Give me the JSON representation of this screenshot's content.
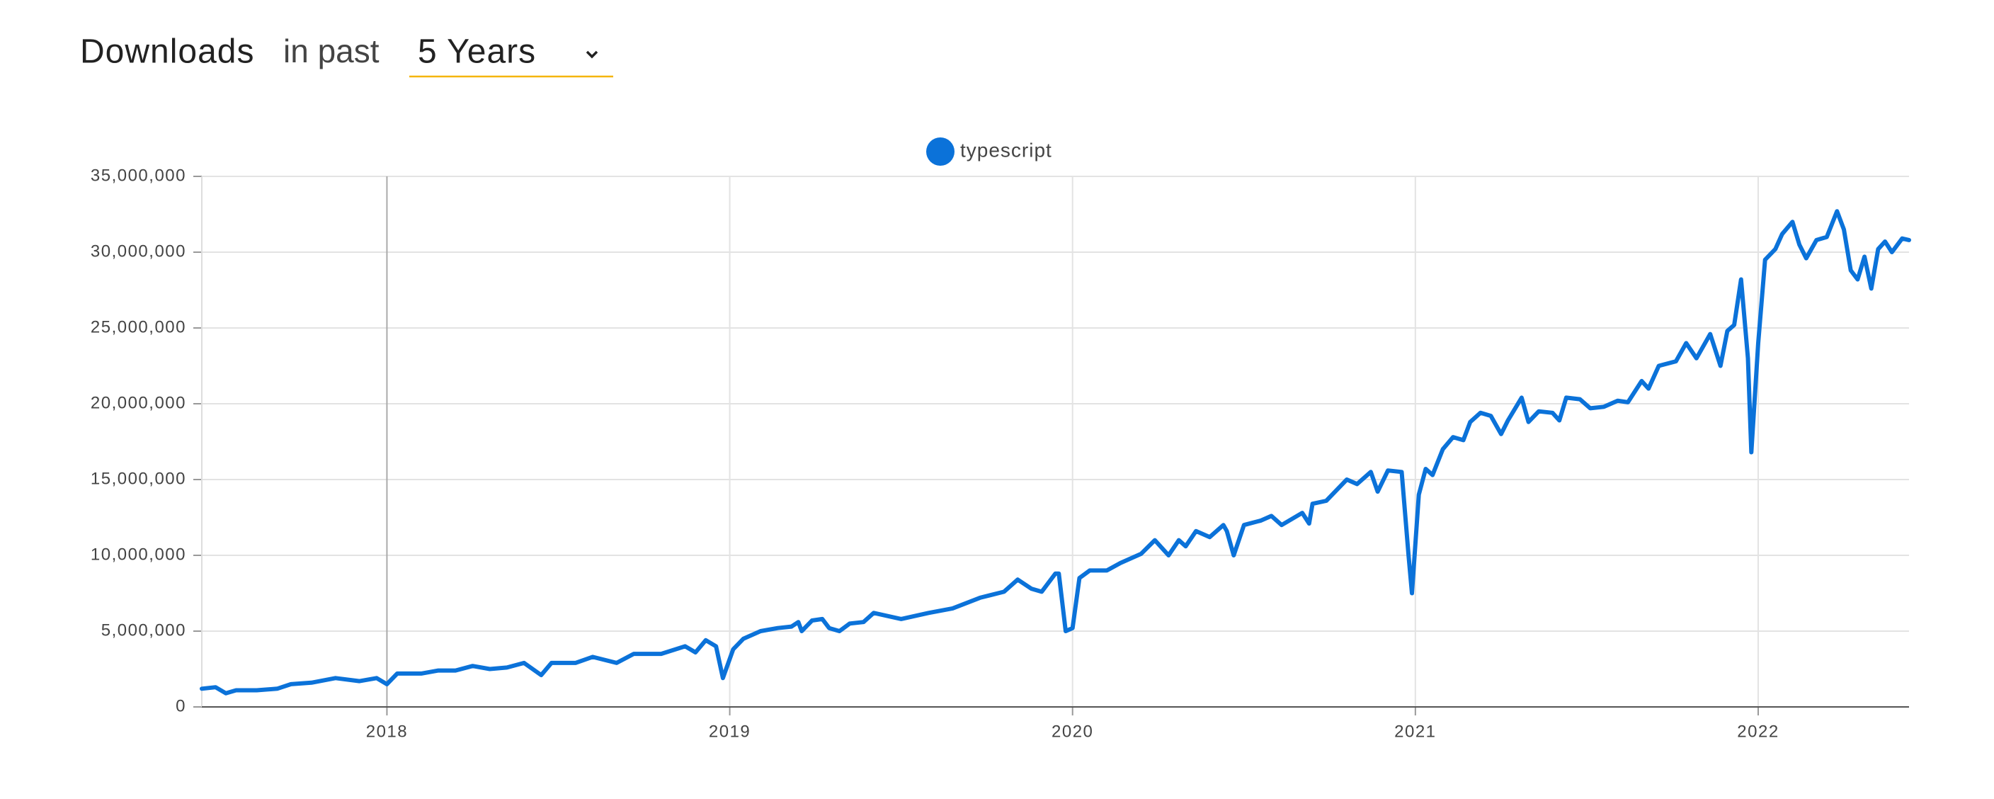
{
  "header": {
    "title": "Downloads",
    "subtitle": "in past",
    "period": "5 Years"
  },
  "chart_data": {
    "type": "line",
    "x": [
      2017.46,
      2017.5,
      2017.53,
      2017.56,
      2017.62,
      2017.68,
      2017.72,
      2017.78,
      2017.85,
      2017.92,
      2017.97,
      2018.0,
      2018.03,
      2018.1,
      2018.15,
      2018.2,
      2018.25,
      2018.3,
      2018.35,
      2018.4,
      2018.45,
      2018.48,
      2018.55,
      2018.6,
      2018.67,
      2018.72,
      2018.8,
      2018.87,
      2018.9,
      2018.93,
      2018.96,
      2018.98,
      2019.01,
      2019.04,
      2019.09,
      2019.14,
      2019.18,
      2019.2,
      2019.21,
      2019.24,
      2019.27,
      2019.29,
      2019.32,
      2019.35,
      2019.39,
      2019.42,
      2019.5,
      2019.58,
      2019.65,
      2019.73,
      2019.8,
      2019.84,
      2019.88,
      2019.91,
      2019.95,
      2019.96,
      2019.98,
      2020.0,
      2020.02,
      2020.05,
      2020.1,
      2020.14,
      2020.2,
      2020.24,
      2020.28,
      2020.31,
      2020.33,
      2020.36,
      2020.4,
      2020.44,
      2020.45,
      2020.47,
      2020.5,
      2020.55,
      2020.58,
      2020.61,
      2020.67,
      2020.69,
      2020.7,
      2020.74,
      2020.8,
      2020.83,
      2020.87,
      2020.89,
      2020.92,
      2020.96,
      2020.98,
      2020.99,
      2021.01,
      2021.03,
      2021.05,
      2021.08,
      2021.11,
      2021.14,
      2021.16,
      2021.19,
      2021.22,
      2021.25,
      2021.27,
      2021.31,
      2021.33,
      2021.36,
      2021.4,
      2021.42,
      2021.44,
      2021.48,
      2021.51,
      2021.55,
      2021.59,
      2021.62,
      2021.66,
      2021.68,
      2021.71,
      2021.76,
      2021.79,
      2021.82,
      2021.86,
      2021.89,
      2021.91,
      2021.93,
      2021.95,
      2021.97,
      2021.98,
      2022.0,
      2022.02,
      2022.05,
      2022.07,
      2022.1,
      2022.12,
      2022.14,
      2022.17,
      2022.2,
      2022.23,
      2022.25,
      2022.27,
      2022.29,
      2022.31,
      2022.33,
      2022.35,
      2022.37,
      2022.39,
      2022.42,
      2022.44
    ],
    "series": [
      {
        "name": "typescript",
        "color": "#0b72d9",
        "values": [
          1200000,
          1300000,
          900000,
          1100000,
          1100000,
          1200000,
          1500000,
          1600000,
          1900000,
          1700000,
          1900000,
          1500000,
          2200000,
          2200000,
          2400000,
          2400000,
          2700000,
          2500000,
          2600000,
          2900000,
          2100000,
          2900000,
          2900000,
          3300000,
          2900000,
          3500000,
          3500000,
          4000000,
          3600000,
          4400000,
          4000000,
          1900000,
          3800000,
          4500000,
          5000000,
          5200000,
          5300000,
          5600000,
          5000000,
          5700000,
          5800000,
          5200000,
          5000000,
          5500000,
          5600000,
          6200000,
          5800000,
          6200000,
          6500000,
          7200000,
          7600000,
          8400000,
          7800000,
          7600000,
          8800000,
          8800000,
          5000000,
          5200000,
          8500000,
          9000000,
          9000000,
          9500000,
          10100000,
          11000000,
          10000000,
          11000000,
          10600000,
          11600000,
          11200000,
          12000000,
          11600000,
          10000000,
          12000000,
          12300000,
          12600000,
          12000000,
          12800000,
          12100000,
          13400000,
          13600000,
          15000000,
          14700000,
          15500000,
          14200000,
          15600000,
          15500000,
          10000000,
          7500000,
          14000000,
          15700000,
          15300000,
          17000000,
          17800000,
          17600000,
          18800000,
          19400000,
          19200000,
          18000000,
          18900000,
          20400000,
          18800000,
          19500000,
          19400000,
          18900000,
          20400000,
          20300000,
          19700000,
          19800000,
          20200000,
          20100000,
          21500000,
          21000000,
          22500000,
          22800000,
          24000000,
          23000000,
          24600000,
          22500000,
          24800000,
          25200000,
          28200000,
          23000000,
          16800000,
          24000000,
          29500000,
          30200000,
          31200000,
          32000000,
          30500000,
          29600000,
          30800000,
          31000000,
          32700000,
          31500000,
          28800000,
          28200000,
          29700000,
          27600000,
          30200000,
          30700000,
          30000000,
          30900000,
          30800000
        ]
      }
    ],
    "xlim": [
      2017.46,
      2022.44
    ],
    "xticks": [
      2018,
      2019,
      2020,
      2021,
      2022
    ],
    "ylim": [
      0,
      35000000
    ],
    "yticks": [
      0,
      {
        "value": 5000000,
        "label": "5,000,000"
      },
      {
        "value": 10000000,
        "label": "10,000,000"
      },
      {
        "value": 15000000,
        "label": "15,000,000"
      },
      {
        "value": 20000000,
        "label": "20,000,000"
      },
      {
        "value": 25000000,
        "label": "25,000,000"
      },
      {
        "value": 30000000,
        "label": "30,000,000"
      },
      {
        "value": 35000000,
        "label": "35,000,000"
      }
    ],
    "grid": true,
    "legend": "top"
  }
}
